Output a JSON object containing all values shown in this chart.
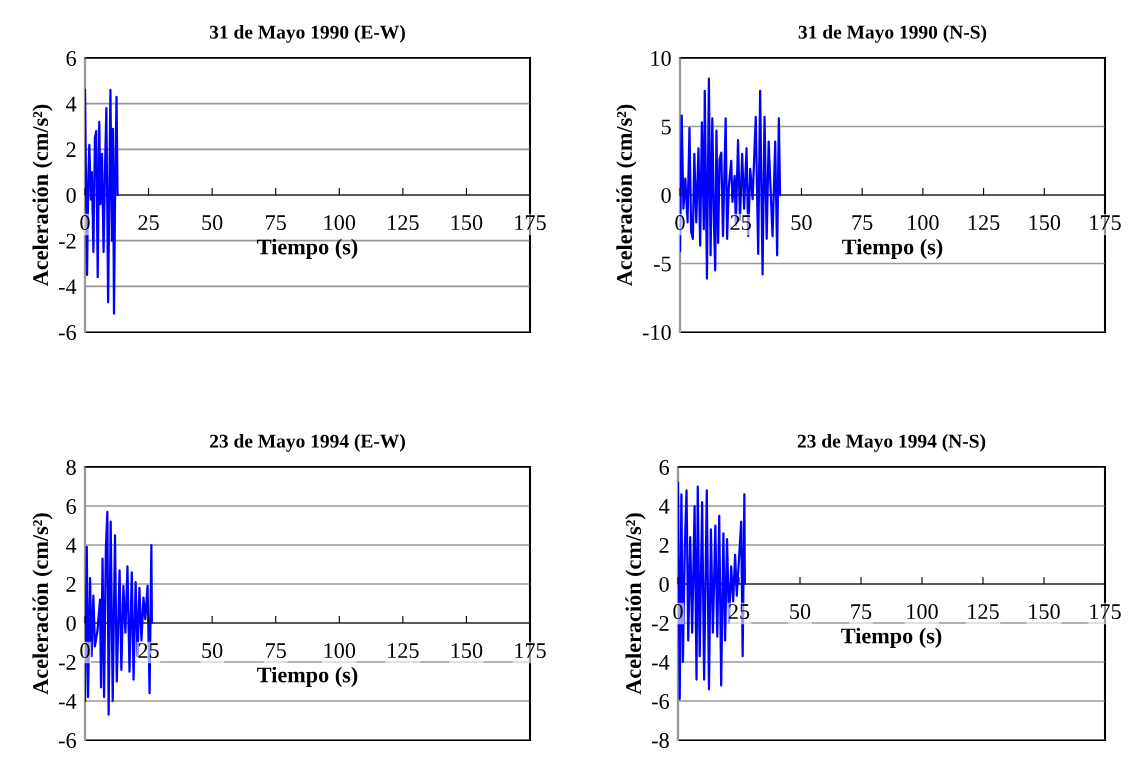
{
  "chart_data": [
    {
      "type": "line",
      "title": "31 de Mayo 1990 (E-W)",
      "xlabel": "Tiempo (s)",
      "ylabel": "Aceleración (cm/s²)",
      "xlim": [
        0,
        175
      ],
      "xticks": [
        0,
        25,
        50,
        75,
        100,
        125,
        150,
        175
      ],
      "ylim": [
        -6,
        6
      ],
      "yticks": [
        -6,
        -4,
        -2,
        0,
        2,
        4,
        6
      ],
      "grid": "y",
      "series": [
        {
          "color": "#0000ff",
          "x": [
            0,
            0.8,
            1.3,
            1.7,
            2.3,
            2.7,
            3.3,
            3.9,
            4.4,
            5.0,
            5.6,
            6.1,
            6.7,
            7.3,
            7.9,
            8.4,
            9.1,
            9.6,
            10.0,
            10.6,
            11.0,
            11.4,
            11.9,
            12.4,
            12.8
          ],
          "values": [
            4.6,
            -3.5,
            0.7,
            2.2,
            -0.2,
            1.0,
            -2.5,
            2.5,
            2.8,
            -3.6,
            3.2,
            -0.4,
            1.8,
            -2.5,
            1.3,
            3.8,
            -4.7,
            0.4,
            4.6,
            -2.0,
            2.9,
            -5.2,
            0.7,
            4.3,
            0
          ]
        }
      ]
    },
    {
      "type": "line",
      "title": "31 de Mayo 1990 (N-S)",
      "xlabel": "Tiempo (s)",
      "ylabel": "Aceleración (cm/s²)",
      "xlim": [
        0,
        175
      ],
      "xticks": [
        0,
        25,
        50,
        75,
        100,
        125,
        150,
        175
      ],
      "ylim": [
        -10,
        10
      ],
      "yticks": [
        -10,
        -5,
        0,
        5,
        10
      ],
      "grid": "y",
      "series": [
        {
          "color": "#0000ff",
          "x": [
            0,
            0.7,
            1.4,
            2.2,
            3.1,
            3.9,
            4.6,
            5.3,
            5.9,
            6.7,
            7.6,
            8.3,
            9.0,
            9.8,
            10.2,
            11.1,
            11.9,
            12.6,
            13.3,
            14.0,
            14.5,
            15.0,
            15.7,
            16.3,
            17.0,
            17.7,
            18.8,
            19.4,
            20.1,
            21.1,
            21.6,
            22.5,
            23.0,
            23.9,
            24.7,
            25.6,
            26.4,
            27.4,
            28.1,
            28.9,
            29.9,
            31.2,
            32.2,
            33.0,
            34.0,
            34.8,
            35.7,
            36.5,
            37.4,
            38.1,
            39.2,
            40.0,
            40.7,
            41.2
          ],
          "values": [
            -4.1,
            5.8,
            -1.0,
            1.2,
            -2.0,
            4.9,
            -2.7,
            -3.2,
            3.0,
            -2.0,
            3.4,
            -3.7,
            5.3,
            -2.5,
            7.6,
            -6.1,
            8.5,
            -4.4,
            5.6,
            -2.2,
            -5.5,
            4.7,
            -3.5,
            2.6,
            3.1,
            -3.0,
            5.6,
            -3.2,
            0.6,
            2.5,
            -0.5,
            1.4,
            -2.2,
            4.0,
            -1.8,
            3.0,
            -1.0,
            3.4,
            -3.0,
            1.9,
            -0.3,
            5.7,
            -4.3,
            7.6,
            -5.8,
            5.7,
            -3.2,
            3.9,
            0,
            -3.0,
            3.9,
            -4.4,
            5.6,
            0
          ]
        }
      ]
    },
    {
      "type": "line",
      "title": "23 de Mayo 1994 (E-W)",
      "xlabel": "Tiempo (s)",
      "ylabel": "Aceleración (cm/s²)",
      "xlim": [
        0,
        175
      ],
      "xticks": [
        0,
        25,
        50,
        75,
        100,
        125,
        150,
        175
      ],
      "ylim": [
        -6,
        8
      ],
      "yticks": [
        -6,
        -4,
        -2,
        0,
        2,
        4,
        6,
        8
      ],
      "grid": "y",
      "series": [
        {
          "color": "#0000ff",
          "x": [
            0,
            0.7,
            1.2,
            2.0,
            2.6,
            3.3,
            3.9,
            4.9,
            5.9,
            6.3,
            6.9,
            7.5,
            8.2,
            8.8,
            9.3,
            10.1,
            10.9,
            11.8,
            12.5,
            13.6,
            14.3,
            15.1,
            15.9,
            16.7,
            17.5,
            18.4,
            19.1,
            19.9,
            20.7,
            21.4,
            22.2,
            23.0,
            23.7,
            24.6,
            25.4,
            26.1,
            26.3
          ],
          "values": [
            -4.0,
            3.9,
            -3.8,
            2.3,
            -1.7,
            1.4,
            -1.2,
            -0.4,
            1.2,
            -3.3,
            3.3,
            -3.8,
            3.8,
            5.7,
            -4.7,
            5.2,
            -4.0,
            4.5,
            -3.0,
            2.7,
            -2.4,
            1.9,
            -0.5,
            2.9,
            -2.5,
            2.6,
            -2.9,
            2.1,
            -1.7,
            1.8,
            -0.9,
            1.3,
            0.2,
            1.9,
            -3.6,
            4.0,
            0
          ]
        }
      ]
    },
    {
      "type": "line",
      "title": "23 de Mayo 1994 (N-S)",
      "xlabel": "Tiempo (s)",
      "ylabel": "Aceleración (cm/s²)",
      "xlim": [
        0,
        175
      ],
      "xticks": [
        0,
        25,
        50,
        75,
        100,
        125,
        150,
        175
      ],
      "ylim": [
        -8,
        6
      ],
      "yticks": [
        -8,
        -6,
        -4,
        -2,
        0,
        2,
        4,
        6
      ],
      "grid": "y",
      "series": [
        {
          "color": "#0000ff",
          "x": [
            0,
            0.7,
            1.4,
            2.0,
            2.8,
            3.5,
            4.2,
            5.0,
            5.8,
            6.8,
            7.6,
            8.1,
            8.9,
            9.9,
            10.7,
            11.8,
            12.7,
            13.5,
            14.3,
            15.3,
            16.1,
            16.9,
            17.7,
            18.6,
            19.3,
            20.1,
            20.9,
            21.8,
            22.6,
            23.4,
            24.1,
            25.9,
            26.5,
            27.2,
            27.4
          ],
          "values": [
            5.2,
            -5.9,
            4.6,
            -4.0,
            1.9,
            4.8,
            -2.9,
            2.4,
            -2.5,
            4.0,
            -4.9,
            5.0,
            -3.7,
            4.2,
            -4.9,
            4.8,
            -5.4,
            2.8,
            -2.5,
            3.0,
            -2.7,
            3.5,
            -5.2,
            2.6,
            -2.9,
            2.3,
            -2.0,
            0.9,
            -0.9,
            1.5,
            -0.6,
            3.2,
            -3.7,
            4.6,
            0
          ]
        }
      ]
    }
  ]
}
